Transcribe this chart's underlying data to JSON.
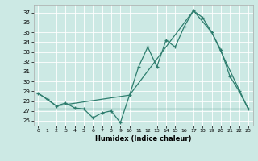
{
  "xlabel": "Humidex (Indice chaleur)",
  "xlim": [
    -0.5,
    23.5
  ],
  "ylim": [
    25.5,
    37.8
  ],
  "xticks": [
    0,
    1,
    2,
    3,
    4,
    5,
    6,
    7,
    8,
    9,
    10,
    11,
    12,
    13,
    14,
    15,
    16,
    17,
    18,
    19,
    20,
    21,
    22,
    23
  ],
  "yticks": [
    26,
    27,
    28,
    29,
    30,
    31,
    32,
    33,
    34,
    35,
    36,
    37
  ],
  "line_color": "#2e7d6e",
  "bg_color": "#cce9e4",
  "grid_color": "#b8ddd8",
  "series1_x": [
    0,
    1,
    2,
    3,
    4,
    5,
    6,
    7,
    8,
    9,
    10,
    11,
    12,
    13,
    14,
    15,
    16,
    17,
    18,
    19,
    20,
    21,
    22,
    23
  ],
  "series1_y": [
    28.8,
    28.2,
    27.5,
    27.8,
    27.3,
    27.2,
    26.3,
    26.8,
    27.0,
    25.8,
    28.6,
    31.5,
    33.5,
    31.5,
    34.2,
    33.5,
    35.6,
    37.2,
    36.5,
    35.0,
    33.2,
    30.5,
    29.0,
    27.2
  ],
  "series2_x": [
    0,
    2,
    10,
    17,
    19,
    23
  ],
  "series2_y": [
    28.8,
    27.5,
    28.6,
    37.2,
    35.0,
    27.2
  ],
  "series3_x": [
    0,
    19,
    23
  ],
  "series3_y": [
    27.2,
    27.2,
    27.2
  ]
}
